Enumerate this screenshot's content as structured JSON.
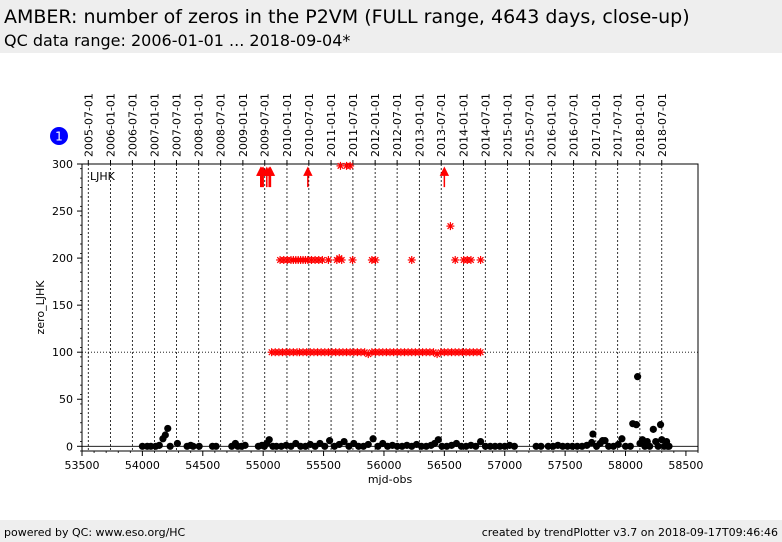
{
  "header": {
    "title": "AMBER: number of zeros in the P2VM (FULL range, 4643 days, close-up)",
    "subtitle": "QC data range: 2006-01-01 ... 2018-09-04*"
  },
  "footer": {
    "left": "powered by QC: www.eso.org/HC",
    "right": "created by trendPlotter v3.7 on 2018-09-17T09:46:46"
  },
  "badge": {
    "label": "1",
    "color": "#0000ff"
  },
  "chart_data": {
    "type": "scatter",
    "xlabel": "mjd-obs",
    "ylabel": "zero_LJHK",
    "xlim": [
      53500,
      58600
    ],
    "ylim": [
      -5,
      300
    ],
    "xticks": [
      53500,
      54000,
      54500,
      55000,
      55500,
      56000,
      56500,
      57000,
      57500,
      58000,
      58500
    ],
    "yticks": [
      0,
      50,
      100,
      150,
      200,
      250,
      300
    ],
    "reference_lines": [
      0,
      100
    ],
    "panel_label": "LJHK",
    "top_axis_dates": [
      {
        "label": "2005-07-01",
        "mjd": 53552
      },
      {
        "label": "2006-01-01",
        "mjd": 53736
      },
      {
        "label": "2006-07-01",
        "mjd": 53917
      },
      {
        "label": "2007-01-01",
        "mjd": 54101
      },
      {
        "label": "2007-07-01",
        "mjd": 54282
      },
      {
        "label": "2008-01-01",
        "mjd": 54466
      },
      {
        "label": "2008-07-01",
        "mjd": 54648
      },
      {
        "label": "2009-01-01",
        "mjd": 54832
      },
      {
        "label": "2009-07-01",
        "mjd": 55013
      },
      {
        "label": "2010-01-01",
        "mjd": 55197
      },
      {
        "label": "2010-07-01",
        "mjd": 55378
      },
      {
        "label": "2011-01-01",
        "mjd": 55562
      },
      {
        "label": "2011-07-01",
        "mjd": 55743
      },
      {
        "label": "2012-01-01",
        "mjd": 55927
      },
      {
        "label": "2012-07-01",
        "mjd": 56109
      },
      {
        "label": "2013-01-01",
        "mjd": 56293
      },
      {
        "label": "2013-07-01",
        "mjd": 56474
      },
      {
        "label": "2014-01-01",
        "mjd": 56658
      },
      {
        "label": "2014-07-01",
        "mjd": 56839
      },
      {
        "label": "2015-01-01",
        "mjd": 57023
      },
      {
        "label": "2015-07-01",
        "mjd": 57204
      },
      {
        "label": "2016-01-01",
        "mjd": 57388
      },
      {
        "label": "2016-07-01",
        "mjd": 57570
      },
      {
        "label": "2017-01-01",
        "mjd": 57754
      },
      {
        "label": "2017-07-01",
        "mjd": 57935
      },
      {
        "label": "2018-01-01",
        "mjd": 58119
      },
      {
        "label": "2018-07-01",
        "mjd": 58300
      }
    ],
    "series": [
      {
        "marker": "star",
        "color": "#ff0000",
        "points": [
          [
            55070,
            100
          ],
          [
            55100,
            100
          ],
          [
            55130,
            100
          ],
          [
            55160,
            100
          ],
          [
            55190,
            100
          ],
          [
            55220,
            100
          ],
          [
            55250,
            100
          ],
          [
            55280,
            100
          ],
          [
            55300,
            100
          ],
          [
            55330,
            100
          ],
          [
            55360,
            100
          ],
          [
            55390,
            100
          ],
          [
            55420,
            100
          ],
          [
            55450,
            100
          ],
          [
            55480,
            100
          ],
          [
            55510,
            100
          ],
          [
            55540,
            100
          ],
          [
            55570,
            100
          ],
          [
            55600,
            100
          ],
          [
            55630,
            100
          ],
          [
            55660,
            100
          ],
          [
            55690,
            100
          ],
          [
            55720,
            100
          ],
          [
            55750,
            100
          ],
          [
            55780,
            100
          ],
          [
            55810,
            100
          ],
          [
            55840,
            100
          ],
          [
            55870,
            98
          ],
          [
            55900,
            100
          ],
          [
            55930,
            100
          ],
          [
            55960,
            100
          ],
          [
            55990,
            100
          ],
          [
            56020,
            100
          ],
          [
            56050,
            100
          ],
          [
            56080,
            100
          ],
          [
            56110,
            100
          ],
          [
            56140,
            100
          ],
          [
            56170,
            100
          ],
          [
            56200,
            100
          ],
          [
            56230,
            100
          ],
          [
            56260,
            100
          ],
          [
            56290,
            100
          ],
          [
            56320,
            100
          ],
          [
            56350,
            100
          ],
          [
            56380,
            100
          ],
          [
            56410,
            100
          ],
          [
            56440,
            98
          ],
          [
            56470,
            100
          ],
          [
            56500,
            100
          ],
          [
            56530,
            100
          ],
          [
            56560,
            100
          ],
          [
            56590,
            100
          ],
          [
            56620,
            100
          ],
          [
            56650,
            100
          ],
          [
            56680,
            100
          ],
          [
            56710,
            100
          ],
          [
            56740,
            100
          ],
          [
            56770,
            100
          ],
          [
            56800,
            100
          ],
          [
            55140,
            198
          ],
          [
            55170,
            198
          ],
          [
            55200,
            198
          ],
          [
            55230,
            198
          ],
          [
            55250,
            198
          ],
          [
            55270,
            198
          ],
          [
            55290,
            198
          ],
          [
            55310,
            198
          ],
          [
            55330,
            198
          ],
          [
            55350,
            198
          ],
          [
            55370,
            198
          ],
          [
            55400,
            198
          ],
          [
            55430,
            198
          ],
          [
            55460,
            198
          ],
          [
            55490,
            198
          ],
          [
            55540,
            198
          ],
          [
            55610,
            198
          ],
          [
            55630,
            200
          ],
          [
            55650,
            198
          ],
          [
            55740,
            198
          ],
          [
            55900,
            198
          ],
          [
            55930,
            198
          ],
          [
            56230,
            198
          ],
          [
            56590,
            198
          ],
          [
            56660,
            198
          ],
          [
            56690,
            198
          ],
          [
            56720,
            198
          ],
          [
            56800,
            198
          ],
          [
            56550,
            234
          ],
          [
            55640,
            298
          ],
          [
            55690,
            298
          ],
          [
            55720,
            298
          ]
        ]
      },
      {
        "marker": "arrow-up",
        "color": "#ff0000",
        "points": [
          [
            54980,
            285
          ],
          [
            54990,
            285
          ],
          [
            55000,
            285
          ],
          [
            55030,
            285
          ],
          [
            55050,
            285
          ],
          [
            55060,
            285
          ],
          [
            55370,
            285
          ],
          [
            56500,
            285
          ]
        ]
      },
      {
        "marker": "circle",
        "color": "#000000",
        "points": [
          [
            54000,
            0
          ],
          [
            54040,
            0
          ],
          [
            54070,
            0
          ],
          [
            54110,
            0
          ],
          [
            54140,
            1
          ],
          [
            54170,
            8
          ],
          [
            54190,
            12
          ],
          [
            54210,
            19
          ],
          [
            54230,
            0
          ],
          [
            54290,
            3
          ],
          [
            54370,
            0
          ],
          [
            54400,
            1
          ],
          [
            54420,
            0
          ],
          [
            54470,
            0
          ],
          [
            54580,
            0
          ],
          [
            54610,
            0
          ],
          [
            54740,
            0
          ],
          [
            54770,
            3
          ],
          [
            54790,
            0
          ],
          [
            54820,
            0
          ],
          [
            54850,
            1
          ],
          [
            54960,
            0
          ],
          [
            54990,
            1
          ],
          [
            55010,
            0
          ],
          [
            55030,
            3
          ],
          [
            55050,
            7
          ],
          [
            55080,
            0
          ],
          [
            55110,
            0
          ],
          [
            55150,
            0
          ],
          [
            55190,
            1
          ],
          [
            55230,
            0
          ],
          [
            55270,
            3
          ],
          [
            55310,
            0
          ],
          [
            55350,
            0
          ],
          [
            55390,
            2
          ],
          [
            55430,
            0
          ],
          [
            55470,
            3
          ],
          [
            55510,
            0
          ],
          [
            55550,
            6
          ],
          [
            55590,
            0
          ],
          [
            55630,
            2
          ],
          [
            55670,
            5
          ],
          [
            55710,
            0
          ],
          [
            55750,
            3
          ],
          [
            55790,
            0
          ],
          [
            55830,
            0
          ],
          [
            55870,
            2
          ],
          [
            55910,
            8
          ],
          [
            55950,
            0
          ],
          [
            55990,
            3
          ],
          [
            56030,
            0
          ],
          [
            56070,
            1
          ],
          [
            56110,
            0
          ],
          [
            56150,
            0
          ],
          [
            56190,
            1
          ],
          [
            56230,
            0
          ],
          [
            56270,
            2
          ],
          [
            56310,
            0
          ],
          [
            56350,
            0
          ],
          [
            56390,
            1
          ],
          [
            56420,
            3
          ],
          [
            56450,
            7
          ],
          [
            56480,
            0
          ],
          [
            56520,
            0
          ],
          [
            56560,
            1
          ],
          [
            56600,
            3
          ],
          [
            56640,
            0
          ],
          [
            56680,
            0
          ],
          [
            56720,
            1
          ],
          [
            56760,
            0
          ],
          [
            56800,
            5
          ],
          [
            56840,
            0
          ],
          [
            56880,
            0
          ],
          [
            56920,
            0
          ],
          [
            56960,
            0
          ],
          [
            57000,
            0
          ],
          [
            57040,
            1
          ],
          [
            57080,
            0
          ],
          [
            57260,
            0
          ],
          [
            57300,
            0
          ],
          [
            57360,
            0
          ],
          [
            57400,
            0
          ],
          [
            57440,
            1
          ],
          [
            57480,
            0
          ],
          [
            57520,
            0
          ],
          [
            57560,
            0
          ],
          [
            57600,
            0
          ],
          [
            57640,
            0
          ],
          [
            57680,
            1
          ],
          [
            57720,
            4
          ],
          [
            57730,
            13
          ],
          [
            57760,
            0
          ],
          [
            57790,
            3
          ],
          [
            57810,
            6
          ],
          [
            57830,
            6
          ],
          [
            57860,
            0
          ],
          [
            57900,
            0
          ],
          [
            57940,
            2
          ],
          [
            57970,
            8
          ],
          [
            58000,
            0
          ],
          [
            58040,
            0
          ],
          [
            58060,
            24
          ],
          [
            58090,
            23
          ],
          [
            58100,
            74
          ],
          [
            58120,
            3
          ],
          [
            58140,
            7
          ],
          [
            58160,
            0
          ],
          [
            58180,
            5
          ],
          [
            58200,
            0
          ],
          [
            58230,
            18
          ],
          [
            58250,
            5
          ],
          [
            58270,
            0
          ],
          [
            58290,
            23
          ],
          [
            58300,
            7
          ],
          [
            58320,
            0
          ],
          [
            58340,
            5
          ],
          [
            58350,
            0
          ],
          [
            58360,
            0
          ]
        ]
      }
    ]
  }
}
